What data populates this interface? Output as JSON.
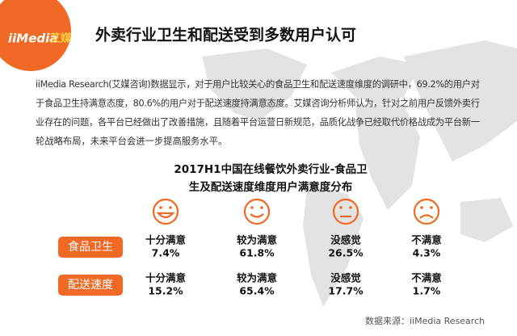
{
  "logo": {
    "brand": "iiMedia",
    "brand_cn": "艾媒"
  },
  "header": {
    "title": "外卖行业卫生和配送受到多数用户认可"
  },
  "paragraph": [
    "iiMedia Research(艾媒咨询)数据显示，对于用户比较关心的食品卫生和配送速度维度的调研中，69.2%的用户对",
    "于食品卫生持满意态度，80.6%的用户对于配送速度持满意态度。艾媒咨询分析师认为，针对之前用户反馈外卖行",
    "业存在的问题，各平台已经做出了改善措施，且随着平台运营日新规范，品质化战争已经取代价格战成为平台新一",
    "轮战略布局，未来平台会进一步提高服务水平。"
  ],
  "table": {
    "title": [
      "2017H1中国在线餐饮外卖行业-食品卫",
      "生及配送速度维度用户满意度分布"
    ],
    "rows": [
      {
        "label": "食品卫生",
        "cells": [
          {
            "label": "十分满意",
            "value": "7.4%"
          },
          {
            "label": "较为满意",
            "value": "61.8%"
          },
          {
            "label": "没感觉",
            "value": "26.5%"
          },
          {
            "label": "不满意",
            "value": "4.3%"
          }
        ]
      },
      {
        "label": "配送速度",
        "cells": [
          {
            "label": "十分满意",
            "value": "15.2%"
          },
          {
            "label": "较为满意",
            "value": "65.4%"
          },
          {
            "label": "没感觉",
            "value": "17.7%"
          },
          {
            "label": "不满意",
            "value": "1.7%"
          }
        ]
      }
    ]
  },
  "source": "数据来源：iiMedia Research"
}
